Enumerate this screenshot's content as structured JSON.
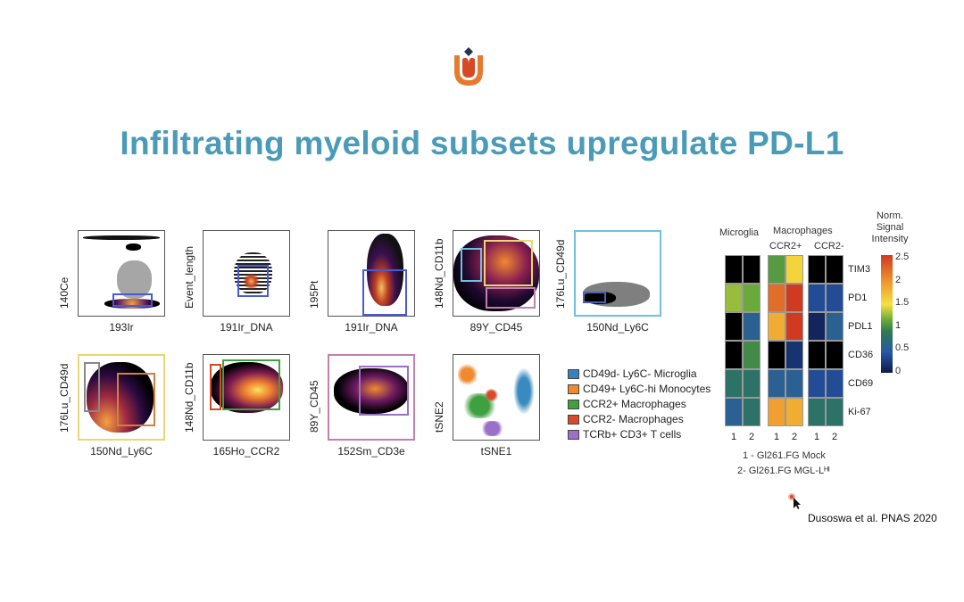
{
  "slide": {
    "title": "Infiltrating myeloid subsets upregulate PD-L1",
    "logo": "tulip-u-logo",
    "citation": "Dusoswa et al. PNAS 2020",
    "title_color": "#4a9bb8"
  },
  "plots": [
    {
      "ylabel": "140Ce",
      "xlabel": "193Ir"
    },
    {
      "ylabel": "Event_length",
      "xlabel": "191Ir_DNA"
    },
    {
      "ylabel": "195Pt",
      "xlabel": "191Ir_DNA"
    },
    {
      "ylabel": "148Nd_CD11b",
      "xlabel": "89Y_CD45"
    },
    {
      "ylabel": "176Lu_CD49d",
      "xlabel": "150Nd_Ly6C"
    },
    {
      "ylabel": "176Lu_CD49d",
      "xlabel": "150Nd_Ly6C"
    },
    {
      "ylabel": "148Nd_CD11b",
      "xlabel": "165Ho_CCR2"
    },
    {
      "ylabel": "89Y_CD45",
      "xlabel": "152Sm_CD3e"
    },
    {
      "ylabel": "tSNE2",
      "xlabel": "tSNE1"
    }
  ],
  "legend": [
    {
      "label": "CD49d- Ly6C- Microglia",
      "color": "#3a7fc0"
    },
    {
      "label": "CD49+ Ly6C-hi Monocytes",
      "color": "#f08a30"
    },
    {
      "label": "CCR2+ Macrophages",
      "color": "#3fa040"
    },
    {
      "label": "CCR2- Macrophages",
      "color": "#d84a2a"
    },
    {
      "label": "TCRb+ CD3+ T cells",
      "color": "#9a70c8"
    }
  ],
  "chart_data": {
    "type": "heatmap",
    "title": "",
    "groups": [
      {
        "label": "Microglia",
        "sublabel": ""
      },
      {
        "label": "Macrophages",
        "sublabel": "CCR2+"
      },
      {
        "label": "",
        "sublabel": "CCR2-"
      }
    ],
    "columns": [
      "1",
      "2",
      "1",
      "2",
      "1",
      "2"
    ],
    "rows": [
      "TIM3",
      "PD1",
      "PDL1",
      "CD36",
      "CD69",
      "Ki-67"
    ],
    "values": [
      [
        null,
        null,
        1.1,
        1.6,
        null,
        null
      ],
      [
        1.3,
        1.2,
        2.3,
        2.6,
        0.4,
        0.4
      ],
      [
        null,
        0.6,
        1.9,
        2.6,
        0.1,
        0.6
      ],
      [
        null,
        1.0,
        null,
        0.2,
        null,
        null
      ],
      [
        0.8,
        0.8,
        0.6,
        0.6,
        0.4,
        0.4
      ],
      [
        0.6,
        0.8,
        2.0,
        1.9,
        0.8,
        0.8
      ]
    ],
    "colorbar": {
      "title_lines": [
        "Norm.",
        "Signal",
        "Intensity"
      ],
      "range": [
        0,
        2.6
      ],
      "ticks": [
        "2.5",
        "2",
        "1.5",
        "1",
        "0.5",
        "0"
      ]
    },
    "footnotes": [
      "1 - Gl261.FG Mock",
      "2- Gl261.FG MGL-Lᴴᴵ"
    ]
  }
}
